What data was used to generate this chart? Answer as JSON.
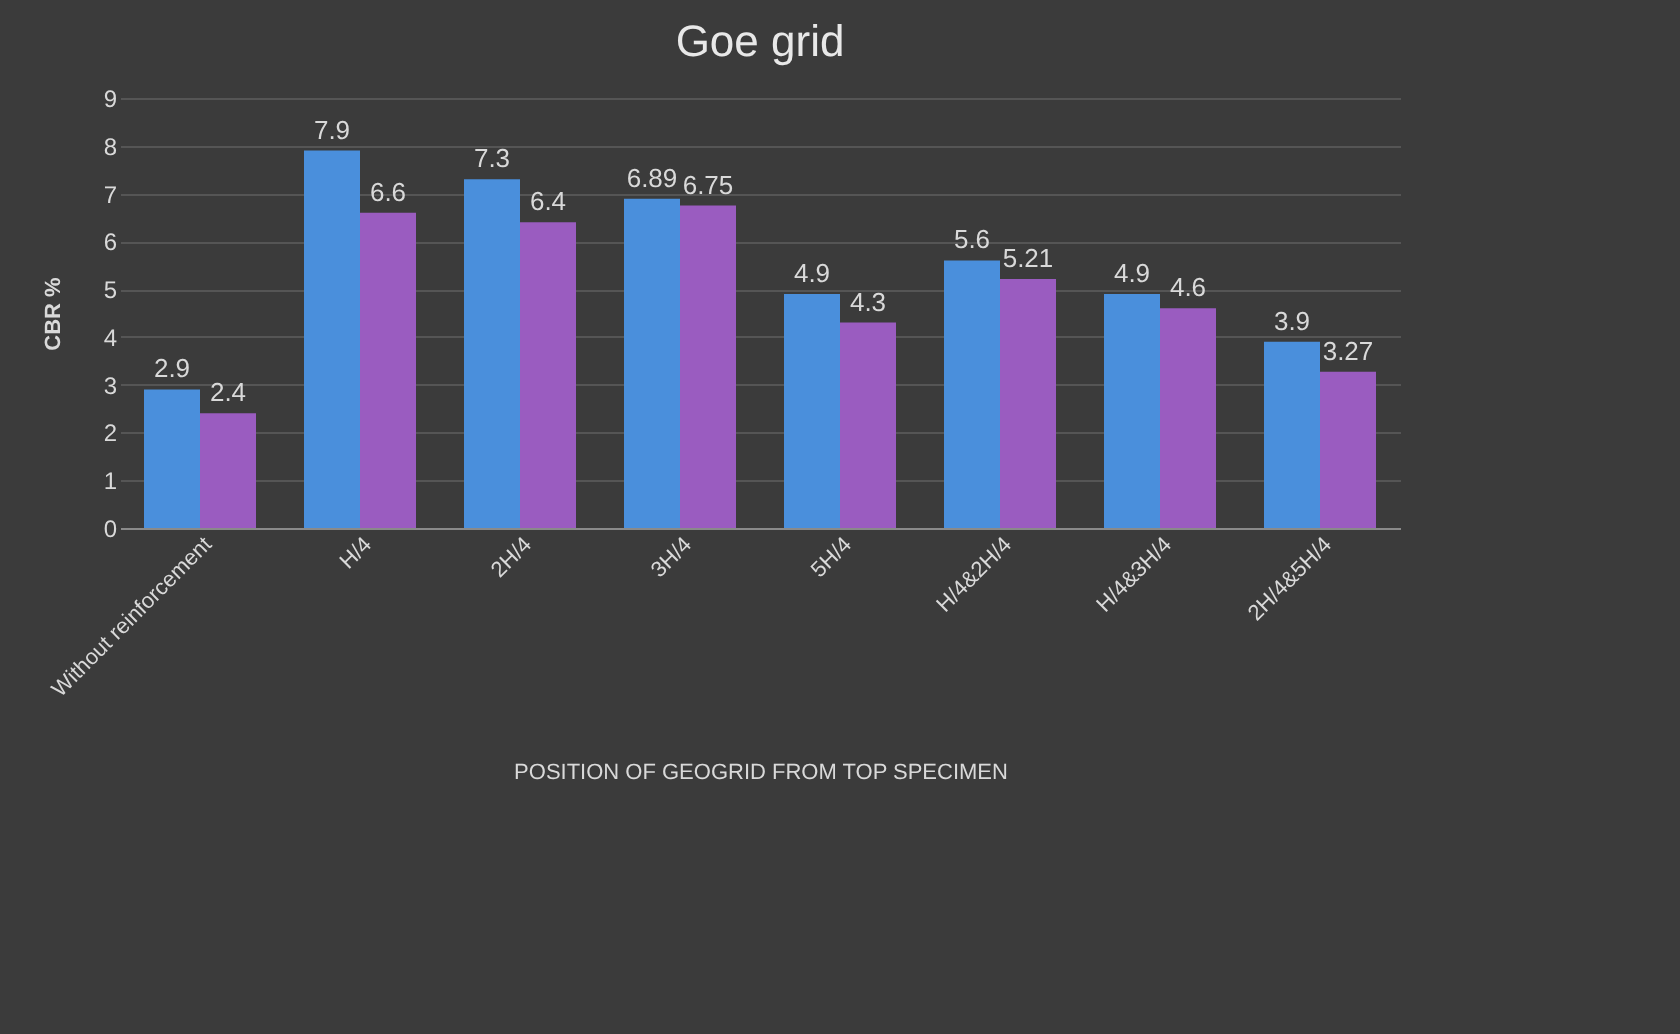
{
  "chart_data": {
    "type": "bar",
    "title": "Goe grid",
    "xlabel": "POSITION OF GEOGRID FROM TOP SPECIMEN",
    "ylabel": "CBR %",
    "categories": [
      "Without reinforcement",
      "H/4",
      "2H/4",
      "3H/4",
      "5H/4",
      "H/4&2H/4",
      "H/4&3H/4",
      "2H/4&5H/4"
    ],
    "series": [
      {
        "color": "#4a8fdc",
        "values": [
          2.9,
          7.9,
          7.3,
          6.89,
          4.9,
          5.6,
          4.9,
          3.9
        ]
      },
      {
        "color": "#9a5cc0",
        "values": [
          2.4,
          6.6,
          6.4,
          6.75,
          4.3,
          5.21,
          4.6,
          3.27
        ]
      }
    ],
    "ylim": [
      0,
      9
    ],
    "yticks": [
      0,
      1,
      2,
      3,
      4,
      5,
      6,
      7,
      8,
      9
    ],
    "grid": "y",
    "data_labels": true,
    "legend": false
  }
}
